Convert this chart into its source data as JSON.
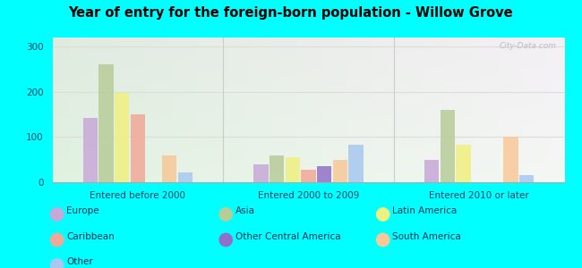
{
  "title": "Year of entry for the foreign-born population - Willow Grove",
  "categories": [
    "Entered before 2000",
    "Entered 2000 to 2009",
    "Entered 2010 or later"
  ],
  "series": {
    "Europe": [
      143,
      40,
      50
    ],
    "Asia": [
      260,
      60,
      160
    ],
    "Latin America": [
      197,
      55,
      83
    ],
    "Caribbean": [
      150,
      28,
      0
    ],
    "Other Central America": [
      0,
      35,
      0
    ],
    "South America": [
      60,
      50,
      100
    ],
    "Other": [
      22,
      83,
      15
    ]
  },
  "colors": {
    "Europe": "#c8a8d8",
    "Asia": "#b8cc98",
    "Latin America": "#f0f080",
    "Caribbean": "#f0a898",
    "Other Central America": "#9070c8",
    "South America": "#f8c898",
    "Other": "#a8c8f0"
  },
  "bar_order": [
    "Europe",
    "Asia",
    "Latin America",
    "Caribbean",
    "Other Central America",
    "South America",
    "Other"
  ],
  "ylim": [
    0,
    320
  ],
  "yticks": [
    0,
    100,
    200,
    300
  ],
  "outer_background": "#00ffff",
  "watermark": "City-Data.com",
  "legend_items": [
    [
      "Europe",
      "#c8a8d8"
    ],
    [
      "Caribbean",
      "#f0a898"
    ],
    [
      "Other",
      "#a8c8f0"
    ],
    [
      "Asia",
      "#b8cc98"
    ],
    [
      "Other Central America",
      "#9070c8"
    ],
    [
      "Latin America",
      "#f0f080"
    ],
    [
      "South America",
      "#f8c898"
    ]
  ]
}
